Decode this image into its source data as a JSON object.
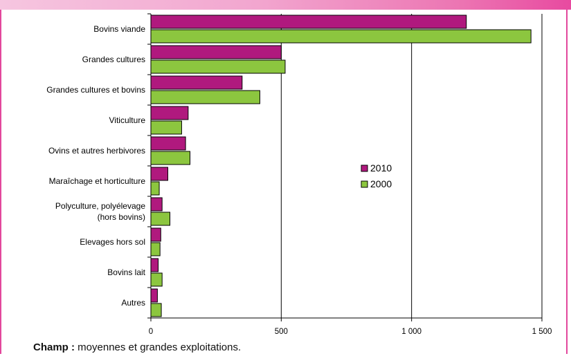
{
  "chart_data": {
    "type": "bar",
    "orientation": "horizontal",
    "categories": [
      [
        "Bovins viande"
      ],
      [
        "Grandes cultures"
      ],
      [
        "Grandes cultures et bovins"
      ],
      [
        "Viticulture"
      ],
      [
        "Ovins et autres herbivores"
      ],
      [
        "Maraîchage et horticulture"
      ],
      [
        "Polyculture, polyélevage",
        "(hors bovins)"
      ],
      [
        "Elevages hors sol"
      ],
      [
        "Bovins lait"
      ],
      [
        "Autres"
      ]
    ],
    "series": [
      {
        "name": "2010",
        "color": "#b0197e",
        "values": [
          1210,
          500,
          350,
          143,
          133,
          65,
          43,
          38,
          28,
          25
        ]
      },
      {
        "name": "2000",
        "color": "#8cc63f",
        "values": [
          1458,
          515,
          418,
          118,
          150,
          32,
          73,
          35,
          43,
          40
        ]
      }
    ],
    "xlim": [
      0,
      1500
    ],
    "xticks": [
      0,
      500,
      1000,
      1500
    ],
    "xtick_labels": [
      "0",
      "500",
      "1 000",
      "1 500"
    ],
    "grid": "vertical",
    "legend": "right-center"
  },
  "note": {
    "label": "Champ :",
    "text": " moyennes et grandes exploitations."
  }
}
